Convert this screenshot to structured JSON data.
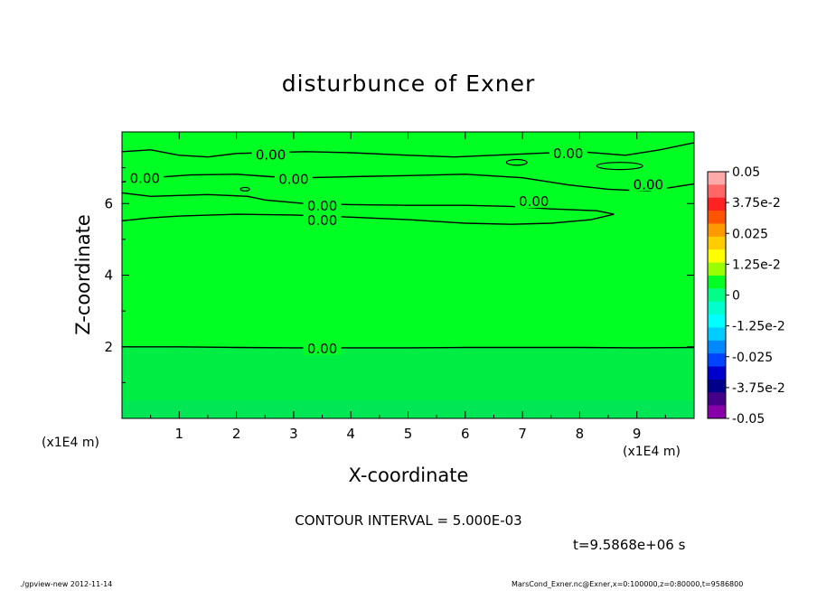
{
  "title": "disturbunce of Exner",
  "contour_interval_text": "CONTOUR INTERVAL = 5.000E-03",
  "time_text": "t=9.5868e+06 s",
  "footer_left": "./gpview-new  2012-11-14",
  "footer_right": "MarsCond_Exner.nc@Exner,x=0:100000,z=0:80000,t=9586800",
  "colors": {
    "field_main": "#00ff22",
    "field_low": "#00ee44",
    "field_bottom": "#00e655",
    "contour": "#000000"
  },
  "chart_data": {
    "type": "heatmap",
    "title": "disturbunce of Exner",
    "xlabel": "X-coordinate",
    "ylabel": "Z-coordinate",
    "x_unit": "(x1E4 m)",
    "y_unit": "(x1E4 m)",
    "xlim": [
      0,
      10
    ],
    "ylim": [
      0,
      8
    ],
    "x_ticks": [
      "1",
      "2",
      "3",
      "4",
      "5",
      "6",
      "7",
      "8",
      "9"
    ],
    "y_ticks": [
      "2",
      "4",
      "6"
    ],
    "contour_interval": 0.005,
    "contour_label": "0.00",
    "colorbar": {
      "labels": [
        "0.05",
        "3.75e-2",
        "0.025",
        "1.25e-2",
        "0",
        "-1.25e-2",
        "-0.025",
        "-3.75e-2",
        "-0.05"
      ],
      "levels": [
        0.05,
        0.0375,
        0.025,
        0.0125,
        0,
        -0.0125,
        -0.025,
        -0.0375,
        -0.05
      ],
      "colors": [
        "#ffaaaa",
        "#ff6666",
        "#ff2222",
        "#ff5500",
        "#ff9900",
        "#ffcc00",
        "#ffff00",
        "#99ff00",
        "#00ff22",
        "#00ff88",
        "#00ffcc",
        "#00ffff",
        "#00ccff",
        "#0088ff",
        "#0044ff",
        "#0000cc",
        "#000088",
        "#440088",
        "#8800aa"
      ]
    },
    "contours": [
      {
        "level": 0.0,
        "label": "0.00",
        "points": [
          [
            0,
            2.0
          ],
          [
            1,
            2.0
          ],
          [
            2,
            1.98
          ],
          [
            3,
            1.97
          ],
          [
            4,
            1.97
          ],
          [
            5,
            1.97
          ],
          [
            6,
            1.98
          ],
          [
            7,
            1.98
          ],
          [
            8,
            1.98
          ],
          [
            9,
            1.97
          ],
          [
            10,
            1.98
          ]
        ]
      },
      {
        "level": 0.0,
        "label": "0.00",
        "points": [
          [
            0,
            5.52
          ],
          [
            0.5,
            5.6
          ],
          [
            1,
            5.65
          ],
          [
            2,
            5.7
          ],
          [
            3,
            5.68
          ],
          [
            4,
            5.62
          ],
          [
            5,
            5.55
          ],
          [
            6,
            5.45
          ],
          [
            6.8,
            5.42
          ],
          [
            7.5,
            5.45
          ],
          [
            8.2,
            5.55
          ],
          [
            8.6,
            5.7
          ],
          [
            8.3,
            5.8
          ],
          [
            7.5,
            5.85
          ],
          [
            6.8,
            5.92
          ],
          [
            6,
            5.95
          ],
          [
            5,
            5.95
          ],
          [
            4,
            5.97
          ],
          [
            3.2,
            6.0
          ],
          [
            2.5,
            6.1
          ],
          [
            2.2,
            6.2
          ],
          [
            1.5,
            6.25
          ],
          [
            0.5,
            6.2
          ],
          [
            0,
            6.3
          ]
        ]
      },
      {
        "level": 0.0,
        "label": "0.00",
        "points": [
          [
            0,
            6.6
          ],
          [
            0.5,
            6.72
          ],
          [
            1.2,
            6.8
          ],
          [
            2,
            6.82
          ],
          [
            2.6,
            6.75
          ],
          [
            3.2,
            6.72
          ],
          [
            4,
            6.75
          ],
          [
            5,
            6.78
          ],
          [
            6,
            6.82
          ],
          [
            7,
            6.72
          ],
          [
            7.8,
            6.52
          ],
          [
            8.5,
            6.4
          ],
          [
            9.2,
            6.35
          ],
          [
            9.6,
            6.45
          ],
          [
            10,
            6.55
          ]
        ]
      },
      {
        "level": 0.0,
        "label": "0.00",
        "points": [
          [
            0,
            7.45
          ],
          [
            0.5,
            7.5
          ],
          [
            1,
            7.35
          ],
          [
            1.5,
            7.3
          ],
          [
            2,
            7.4
          ],
          [
            2.5,
            7.42
          ],
          [
            3.2,
            7.45
          ],
          [
            4,
            7.42
          ],
          [
            5,
            7.35
          ],
          [
            5.8,
            7.3
          ],
          [
            6.5,
            7.35
          ],
          [
            7.2,
            7.4
          ],
          [
            8,
            7.45
          ],
          [
            8.8,
            7.35
          ],
          [
            9.4,
            7.5
          ],
          [
            10,
            7.7
          ]
        ]
      }
    ]
  }
}
